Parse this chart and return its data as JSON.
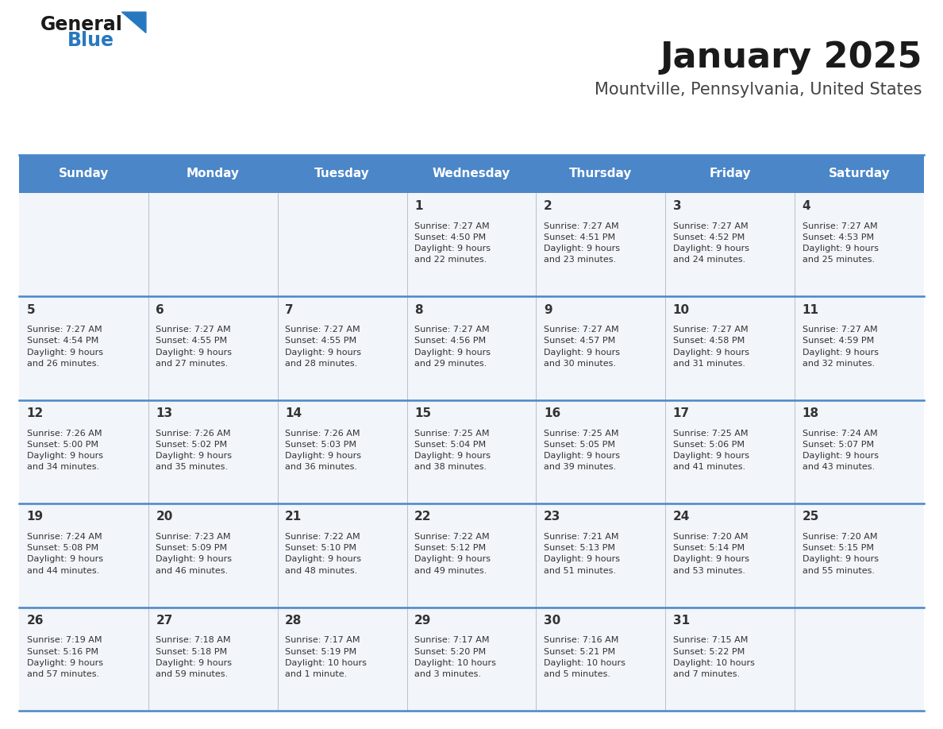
{
  "title": "January 2025",
  "subtitle": "Mountville, Pennsylvania, United States",
  "days_of_week": [
    "Sunday",
    "Monday",
    "Tuesday",
    "Wednesday",
    "Thursday",
    "Friday",
    "Saturday"
  ],
  "header_bg": "#4a86c8",
  "header_text": "#ffffff",
  "cell_bg": "#f2f5f9",
  "separator_color": "#4a86c8",
  "cell_text_color": "#333333",
  "calendar_data": [
    [
      null,
      null,
      null,
      {
        "day": 1,
        "sunrise": "7:27 AM",
        "sunset": "4:50 PM",
        "daylight": "9 hours and 22 minutes"
      },
      {
        "day": 2,
        "sunrise": "7:27 AM",
        "sunset": "4:51 PM",
        "daylight": "9 hours and 23 minutes"
      },
      {
        "day": 3,
        "sunrise": "7:27 AM",
        "sunset": "4:52 PM",
        "daylight": "9 hours and 24 minutes"
      },
      {
        "day": 4,
        "sunrise": "7:27 AM",
        "sunset": "4:53 PM",
        "daylight": "9 hours and 25 minutes"
      }
    ],
    [
      {
        "day": 5,
        "sunrise": "7:27 AM",
        "sunset": "4:54 PM",
        "daylight": "9 hours and 26 minutes"
      },
      {
        "day": 6,
        "sunrise": "7:27 AM",
        "sunset": "4:55 PM",
        "daylight": "9 hours and 27 minutes"
      },
      {
        "day": 7,
        "sunrise": "7:27 AM",
        "sunset": "4:55 PM",
        "daylight": "9 hours and 28 minutes"
      },
      {
        "day": 8,
        "sunrise": "7:27 AM",
        "sunset": "4:56 PM",
        "daylight": "9 hours and 29 minutes"
      },
      {
        "day": 9,
        "sunrise": "7:27 AM",
        "sunset": "4:57 PM",
        "daylight": "9 hours and 30 minutes"
      },
      {
        "day": 10,
        "sunrise": "7:27 AM",
        "sunset": "4:58 PM",
        "daylight": "9 hours and 31 minutes"
      },
      {
        "day": 11,
        "sunrise": "7:27 AM",
        "sunset": "4:59 PM",
        "daylight": "9 hours and 32 minutes"
      }
    ],
    [
      {
        "day": 12,
        "sunrise": "7:26 AM",
        "sunset": "5:00 PM",
        "daylight": "9 hours and 34 minutes"
      },
      {
        "day": 13,
        "sunrise": "7:26 AM",
        "sunset": "5:02 PM",
        "daylight": "9 hours and 35 minutes"
      },
      {
        "day": 14,
        "sunrise": "7:26 AM",
        "sunset": "5:03 PM",
        "daylight": "9 hours and 36 minutes"
      },
      {
        "day": 15,
        "sunrise": "7:25 AM",
        "sunset": "5:04 PM",
        "daylight": "9 hours and 38 minutes"
      },
      {
        "day": 16,
        "sunrise": "7:25 AM",
        "sunset": "5:05 PM",
        "daylight": "9 hours and 39 minutes"
      },
      {
        "day": 17,
        "sunrise": "7:25 AM",
        "sunset": "5:06 PM",
        "daylight": "9 hours and 41 minutes"
      },
      {
        "day": 18,
        "sunrise": "7:24 AM",
        "sunset": "5:07 PM",
        "daylight": "9 hours and 43 minutes"
      }
    ],
    [
      {
        "day": 19,
        "sunrise": "7:24 AM",
        "sunset": "5:08 PM",
        "daylight": "9 hours and 44 minutes"
      },
      {
        "day": 20,
        "sunrise": "7:23 AM",
        "sunset": "5:09 PM",
        "daylight": "9 hours and 46 minutes"
      },
      {
        "day": 21,
        "sunrise": "7:22 AM",
        "sunset": "5:10 PM",
        "daylight": "9 hours and 48 minutes"
      },
      {
        "day": 22,
        "sunrise": "7:22 AM",
        "sunset": "5:12 PM",
        "daylight": "9 hours and 49 minutes"
      },
      {
        "day": 23,
        "sunrise": "7:21 AM",
        "sunset": "5:13 PM",
        "daylight": "9 hours and 51 minutes"
      },
      {
        "day": 24,
        "sunrise": "7:20 AM",
        "sunset": "5:14 PM",
        "daylight": "9 hours and 53 minutes"
      },
      {
        "day": 25,
        "sunrise": "7:20 AM",
        "sunset": "5:15 PM",
        "daylight": "9 hours and 55 minutes"
      }
    ],
    [
      {
        "day": 26,
        "sunrise": "7:19 AM",
        "sunset": "5:16 PM",
        "daylight": "9 hours and 57 minutes"
      },
      {
        "day": 27,
        "sunrise": "7:18 AM",
        "sunset": "5:18 PM",
        "daylight": "9 hours and 59 minutes"
      },
      {
        "day": 28,
        "sunrise": "7:17 AM",
        "sunset": "5:19 PM",
        "daylight": "10 hours and 1 minute"
      },
      {
        "day": 29,
        "sunrise": "7:17 AM",
        "sunset": "5:20 PM",
        "daylight": "10 hours and 3 minutes"
      },
      {
        "day": 30,
        "sunrise": "7:16 AM",
        "sunset": "5:21 PM",
        "daylight": "10 hours and 5 minutes"
      },
      {
        "day": 31,
        "sunrise": "7:15 AM",
        "sunset": "5:22 PM",
        "daylight": "10 hours and 7 minutes"
      },
      null
    ]
  ],
  "logo_color_general": "#1a1a1a",
  "logo_color_blue": "#2878c0",
  "logo_triangle_color": "#2878c0",
  "title_color": "#1a1a1a",
  "subtitle_color": "#444444"
}
